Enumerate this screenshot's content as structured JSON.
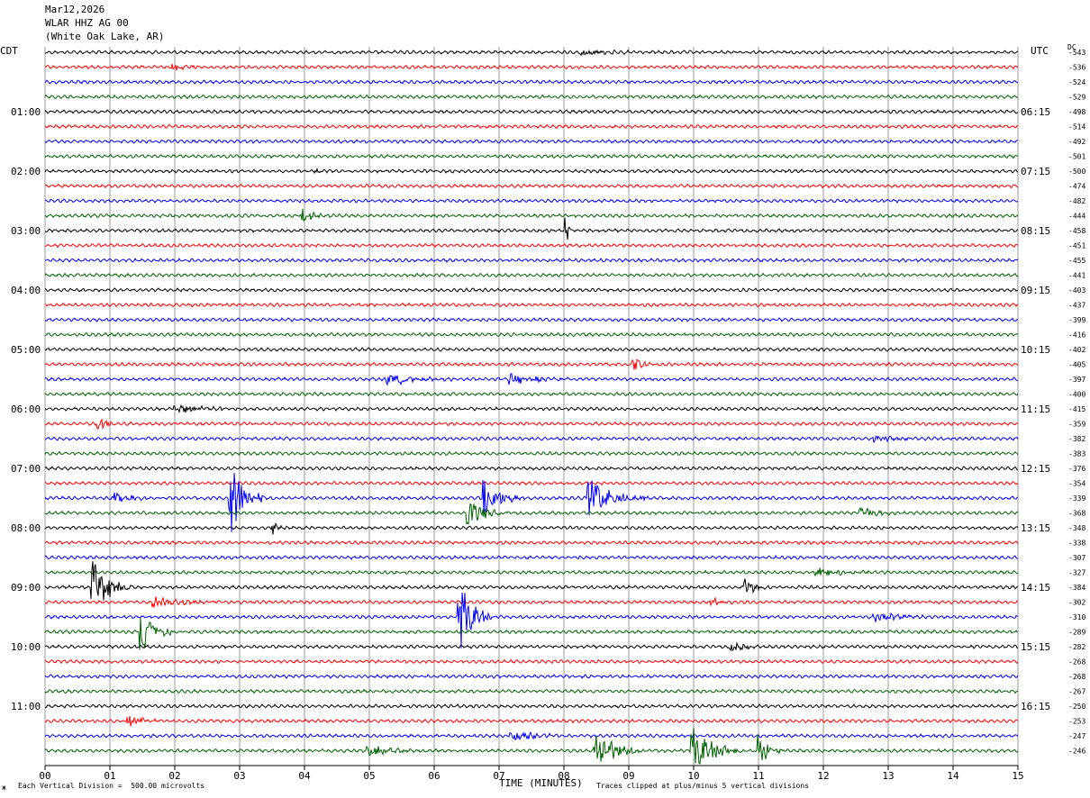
{
  "header": {
    "date": "Mar12,2026",
    "station": "WLAR HHZ AG 00",
    "location": "(White Oak Lake, AR)"
  },
  "labels": {
    "left_tz": "CDT",
    "right_tz": "UTC",
    "dc": "DC",
    "xlabel": "TIME (MINUTES)",
    "footer_left": "Each Vertical Division =  500.00 microvolts",
    "footer_right": "Traces clipped at plus/minus 5 vertical divisions",
    "corner_mark": "ж"
  },
  "colors": {
    "trace_cycle": [
      "#000000",
      "#ff0000",
      "#0000ff",
      "#006400"
    ],
    "grid": "#808080"
  },
  "chart_data": {
    "type": "line",
    "title": "",
    "xlim": [
      0,
      15
    ],
    "x_ticks": [
      "00",
      "01",
      "02",
      "03",
      "04",
      "05",
      "06",
      "07",
      "08",
      "09",
      "10",
      "11",
      "12",
      "13",
      "14",
      "15"
    ],
    "traces_per_hour": 4,
    "trace_count": 48,
    "left_hour_labels": [
      "01:00",
      "02:00",
      "03:00",
      "04:00",
      "05:00",
      "06:00",
      "07:00",
      "08:00",
      "09:00",
      "10:00",
      "11:00"
    ],
    "right_hour_labels": [
      "06:15",
      "07:15",
      "08:15",
      "09:15",
      "10:15",
      "11:15",
      "12:15",
      "13:15",
      "14:15",
      "15:15",
      "16:15"
    ],
    "dc_offsets": [
      "-543",
      "-536",
      "-524",
      "-529",
      "-498",
      "-514",
      "-492",
      "-501",
      "-500",
      "-474",
      "-482",
      "-444",
      "-458",
      "-451",
      "-455",
      "-441",
      "-403",
      "-437",
      "-399",
      "-416",
      "-402",
      "-405",
      "-397",
      "-400",
      "-415",
      "-359",
      "-382",
      "-383",
      "-376",
      "-354",
      "-339",
      "-368",
      "-348",
      "-338",
      "-307",
      "-327",
      "-384",
      "-302",
      "-310",
      "-289",
      "-282",
      "-268",
      "-268",
      "-267",
      "-250",
      "-253",
      "-247",
      "-246"
    ],
    "events": [
      {
        "trace": 0,
        "minute": 8.3,
        "dur": 0.9,
        "amp": 0.35
      },
      {
        "trace": 1,
        "minute": 2.0,
        "dur": 0.8,
        "amp": 0.3
      },
      {
        "trace": 8,
        "minute": 4.2,
        "dur": 0.1,
        "amp": 0.3
      },
      {
        "trace": 11,
        "minute": 4.0,
        "dur": 0.5,
        "amp": 0.7
      },
      {
        "trace": 12,
        "minute": 8.05,
        "dur": 0.05,
        "amp": 1.4
      },
      {
        "trace": 21,
        "minute": 9.1,
        "dur": 0.3,
        "amp": 0.7
      },
      {
        "trace": 22,
        "minute": 5.3,
        "dur": 1.2,
        "amp": 0.6
      },
      {
        "trace": 22,
        "minute": 7.2,
        "dur": 1.0,
        "amp": 0.6
      },
      {
        "trace": 24,
        "minute": 2.0,
        "dur": 1.5,
        "amp": 0.4
      },
      {
        "trace": 25,
        "minute": 0.85,
        "dur": 0.3,
        "amp": 0.7
      },
      {
        "trace": 26,
        "minute": 12.8,
        "dur": 1.0,
        "amp": 0.35
      },
      {
        "trace": 30,
        "minute": 1.1,
        "dur": 0.5,
        "amp": 0.6
      },
      {
        "trace": 30,
        "minute": 2.88,
        "dur": 0.5,
        "amp": 4.0
      },
      {
        "trace": 30,
        "minute": 6.8,
        "dur": 0.6,
        "amp": 2.0
      },
      {
        "trace": 30,
        "minute": 8.4,
        "dur": 0.9,
        "amp": 2.0
      },
      {
        "trace": 31,
        "minute": 6.55,
        "dur": 0.6,
        "amp": 1.7
      },
      {
        "trace": 31,
        "minute": 12.6,
        "dur": 0.6,
        "amp": 0.6
      },
      {
        "trace": 32,
        "minute": 3.55,
        "dur": 0.1,
        "amp": 0.8
      },
      {
        "trace": 35,
        "minute": 11.9,
        "dur": 0.9,
        "amp": 0.5
      },
      {
        "trace": 36,
        "minute": 0.75,
        "dur": 0.6,
        "amp": 3.0
      },
      {
        "trace": 36,
        "minute": 10.8,
        "dur": 0.4,
        "amp": 1.2
      },
      {
        "trace": 37,
        "minute": 1.7,
        "dur": 1.5,
        "amp": 0.5
      },
      {
        "trace": 37,
        "minute": 10.3,
        "dur": 0.3,
        "amp": 0.6
      },
      {
        "trace": 38,
        "minute": 6.4,
        "dur": 0.5,
        "amp": 4.0
      },
      {
        "trace": 38,
        "minute": 12.8,
        "dur": 1.2,
        "amp": 0.5
      },
      {
        "trace": 39,
        "minute": 1.5,
        "dur": 0.5,
        "amp": 2.2
      },
      {
        "trace": 40,
        "minute": 10.6,
        "dur": 0.5,
        "amp": 0.5
      },
      {
        "trace": 45,
        "minute": 1.3,
        "dur": 0.6,
        "amp": 0.6
      },
      {
        "trace": 46,
        "minute": 7.2,
        "dur": 1.0,
        "amp": 0.6
      },
      {
        "trace": 47,
        "minute": 5.0,
        "dur": 1.4,
        "amp": 0.5
      },
      {
        "trace": 47,
        "minute": 8.5,
        "dur": 0.7,
        "amp": 2.5
      },
      {
        "trace": 47,
        "minute": 10.0,
        "dur": 0.8,
        "amp": 2.5
      },
      {
        "trace": 47,
        "minute": 11.0,
        "dur": 0.4,
        "amp": 1.7
      }
    ]
  }
}
